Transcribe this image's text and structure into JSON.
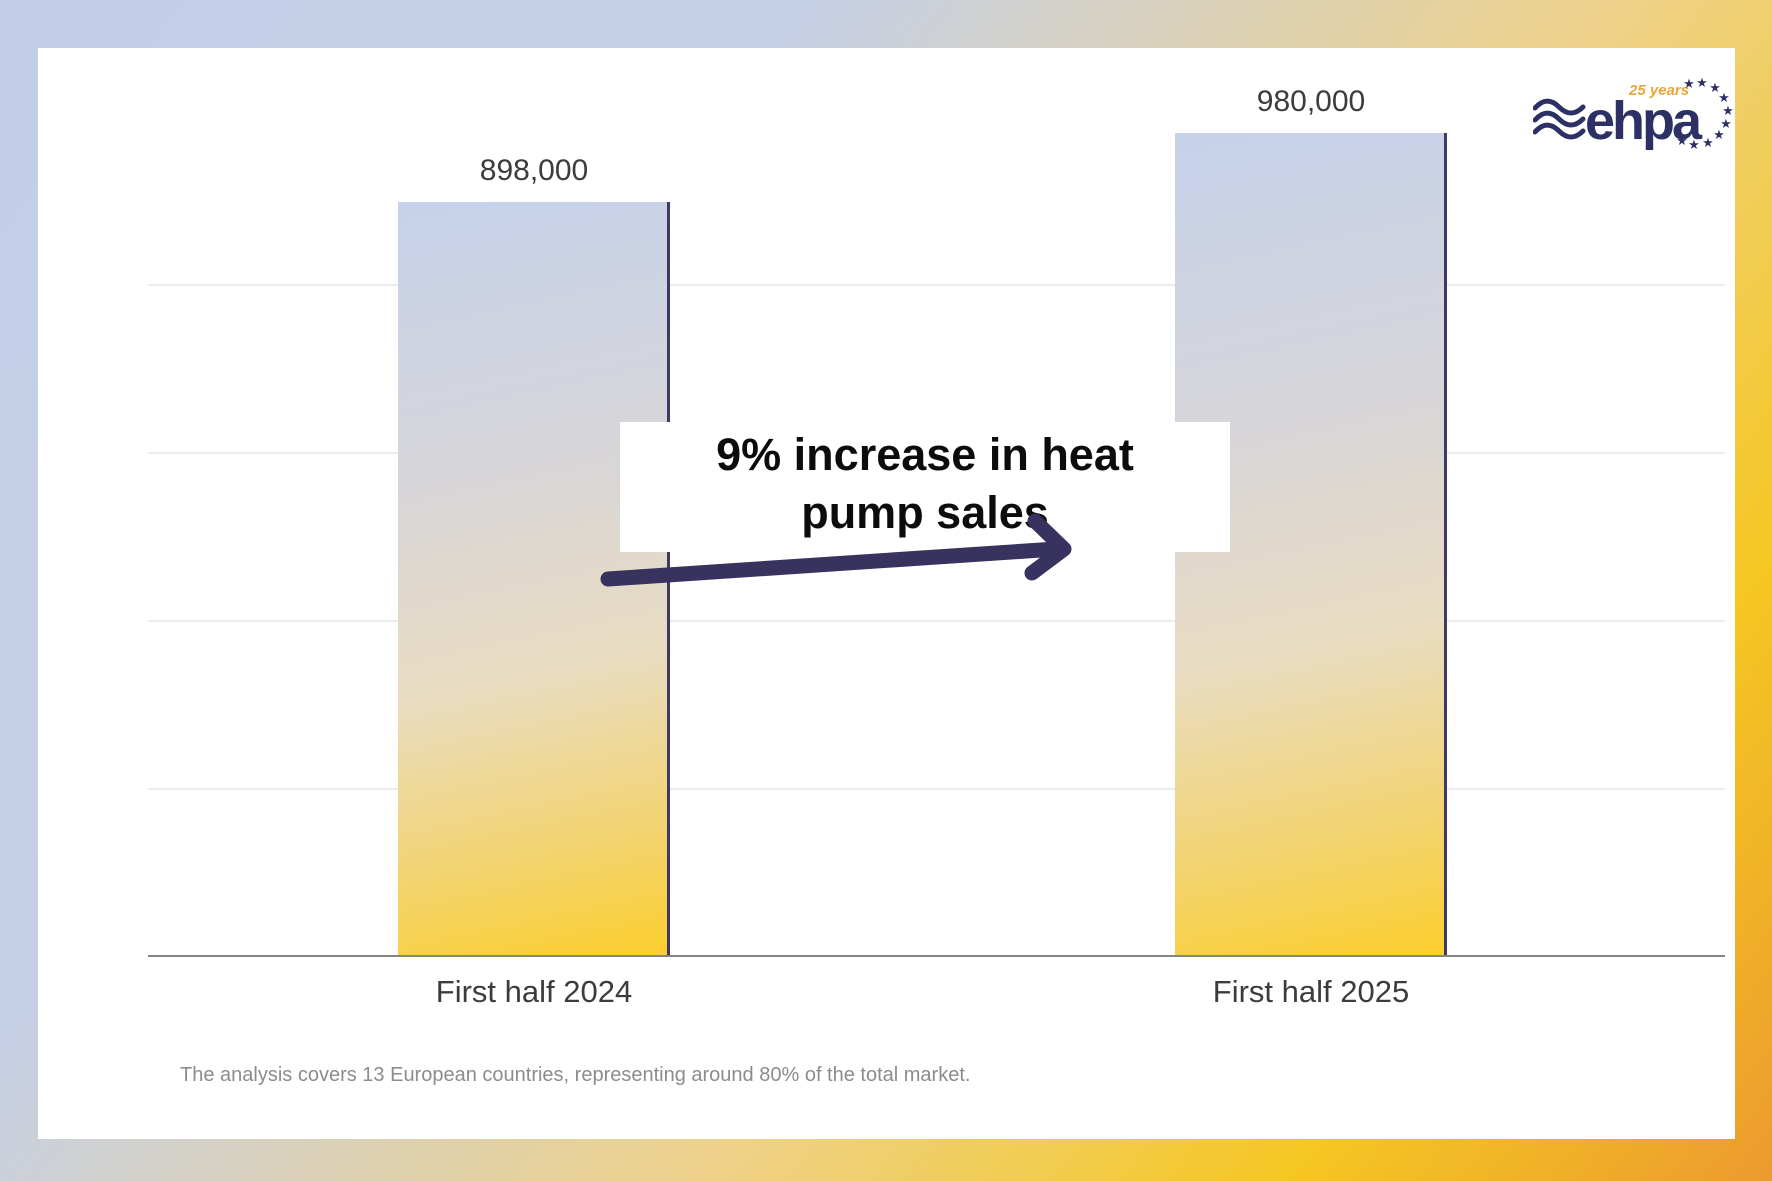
{
  "logo": {
    "brand_text": "ehpa",
    "badge_text": "25 years"
  },
  "chart_data": {
    "type": "bar",
    "title": "",
    "categories": [
      "First half 2024",
      "First half 2025"
    ],
    "values": [
      898000,
      980000
    ],
    "value_labels": [
      "898,000",
      "980,000"
    ],
    "xlabel": "",
    "ylabel": "",
    "ylim": [
      0,
      1000000
    ],
    "gridline_values": [
      200000,
      400000,
      600000,
      800000
    ],
    "grid": "horizontal gridlines, no y-axis tick labels",
    "legend_position": "none",
    "bar_gradient": [
      "#c7d2ea",
      "#e9dcc1",
      "#fccf2e"
    ],
    "annotation": {
      "line1": "9% increase in heat",
      "line2": "pump sales"
    },
    "footnote": "The analysis covers 13 European countries, representing around 80% of the total market."
  },
  "colors": {
    "frame_blue": "#c2cde8",
    "frame_blue2": "#c5cfe6",
    "frame_gold": "#eed28b",
    "frame_yellow": "#f5c722",
    "frame_orange": "#ec9b2e",
    "navy_accent": "#37325e",
    "logo_navy": "#2d3064",
    "logo_gold": "#e8a63c",
    "text_dark": "#3c3c3c",
    "text_gray": "#8c8c8c"
  }
}
